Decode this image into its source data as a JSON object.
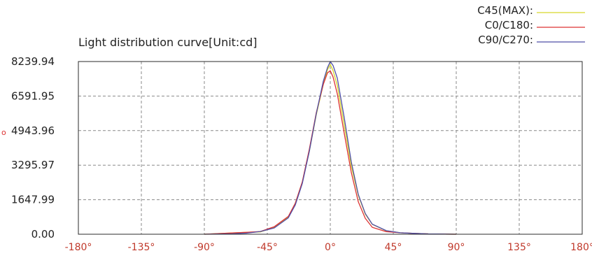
{
  "chart_data": {
    "type": "line",
    "title": "Light distribution curve[Unit:cd]",
    "y_side_marker": "o",
    "xlim": [
      -180,
      180
    ],
    "ylim": [
      0,
      8239.94
    ],
    "x_ticks": [
      -180,
      -135,
      -90,
      -45,
      0,
      45,
      90,
      135,
      180
    ],
    "x_tick_labels": [
      "-180°",
      "-135°",
      "-90°",
      "-45°",
      "0°",
      "45°",
      "90°",
      "135°",
      "180°"
    ],
    "y_ticks": [
      0,
      1647.99,
      3295.97,
      4943.96,
      6591.95,
      8239.94
    ],
    "y_tick_labels": [
      "0.00",
      "1647.99",
      "3295.97",
      "4943.96",
      "6591.95",
      "8239.94"
    ],
    "grid": true,
    "legend_position": "top-right",
    "series": [
      {
        "name": "C45(MAX):",
        "color": "#d6d62a",
        "x": [
          -90,
          -70,
          -60,
          -50,
          -40,
          -30,
          -25,
          -20,
          -15,
          -10,
          -5,
          -2,
          0,
          2,
          5,
          10,
          15,
          20,
          25,
          30,
          40,
          50,
          60,
          70,
          90
        ],
        "y": [
          0,
          60,
          90,
          110,
          330,
          820,
          1480,
          2480,
          3950,
          5700,
          7150,
          7850,
          8100,
          7800,
          7100,
          5200,
          3250,
          1850,
          960,
          470,
          160,
          70,
          40,
          15,
          0
        ]
      },
      {
        "name": "C0/C180:",
        "color": "#dd3333",
        "x": [
          -90,
          -70,
          -60,
          -50,
          -40,
          -30,
          -25,
          -20,
          -15,
          -10,
          -5,
          -2,
          0,
          2,
          5,
          10,
          15,
          20,
          25,
          30,
          40,
          50,
          60,
          70,
          90
        ],
        "y": [
          0,
          60,
          90,
          130,
          360,
          850,
          1480,
          2500,
          4050,
          5800,
          7150,
          7700,
          7800,
          7500,
          6700,
          4800,
          2950,
          1550,
          760,
          330,
          120,
          70,
          40,
          15,
          0
        ]
      },
      {
        "name": "C90/C270:",
        "color": "#4f4fa8",
        "x": [
          -90,
          -70,
          -60,
          -50,
          -40,
          -30,
          -25,
          -20,
          -15,
          -10,
          -5,
          -2,
          0,
          2,
          5,
          10,
          15,
          20,
          25,
          30,
          40,
          50,
          60,
          70,
          90
        ],
        "y": [
          0,
          20,
          50,
          130,
          300,
          780,
          1400,
          2420,
          3950,
          5750,
          7300,
          7950,
          8239.94,
          8050,
          7450,
          5550,
          3450,
          1900,
          990,
          480,
          170,
          70,
          40,
          15,
          0
        ]
      }
    ]
  }
}
